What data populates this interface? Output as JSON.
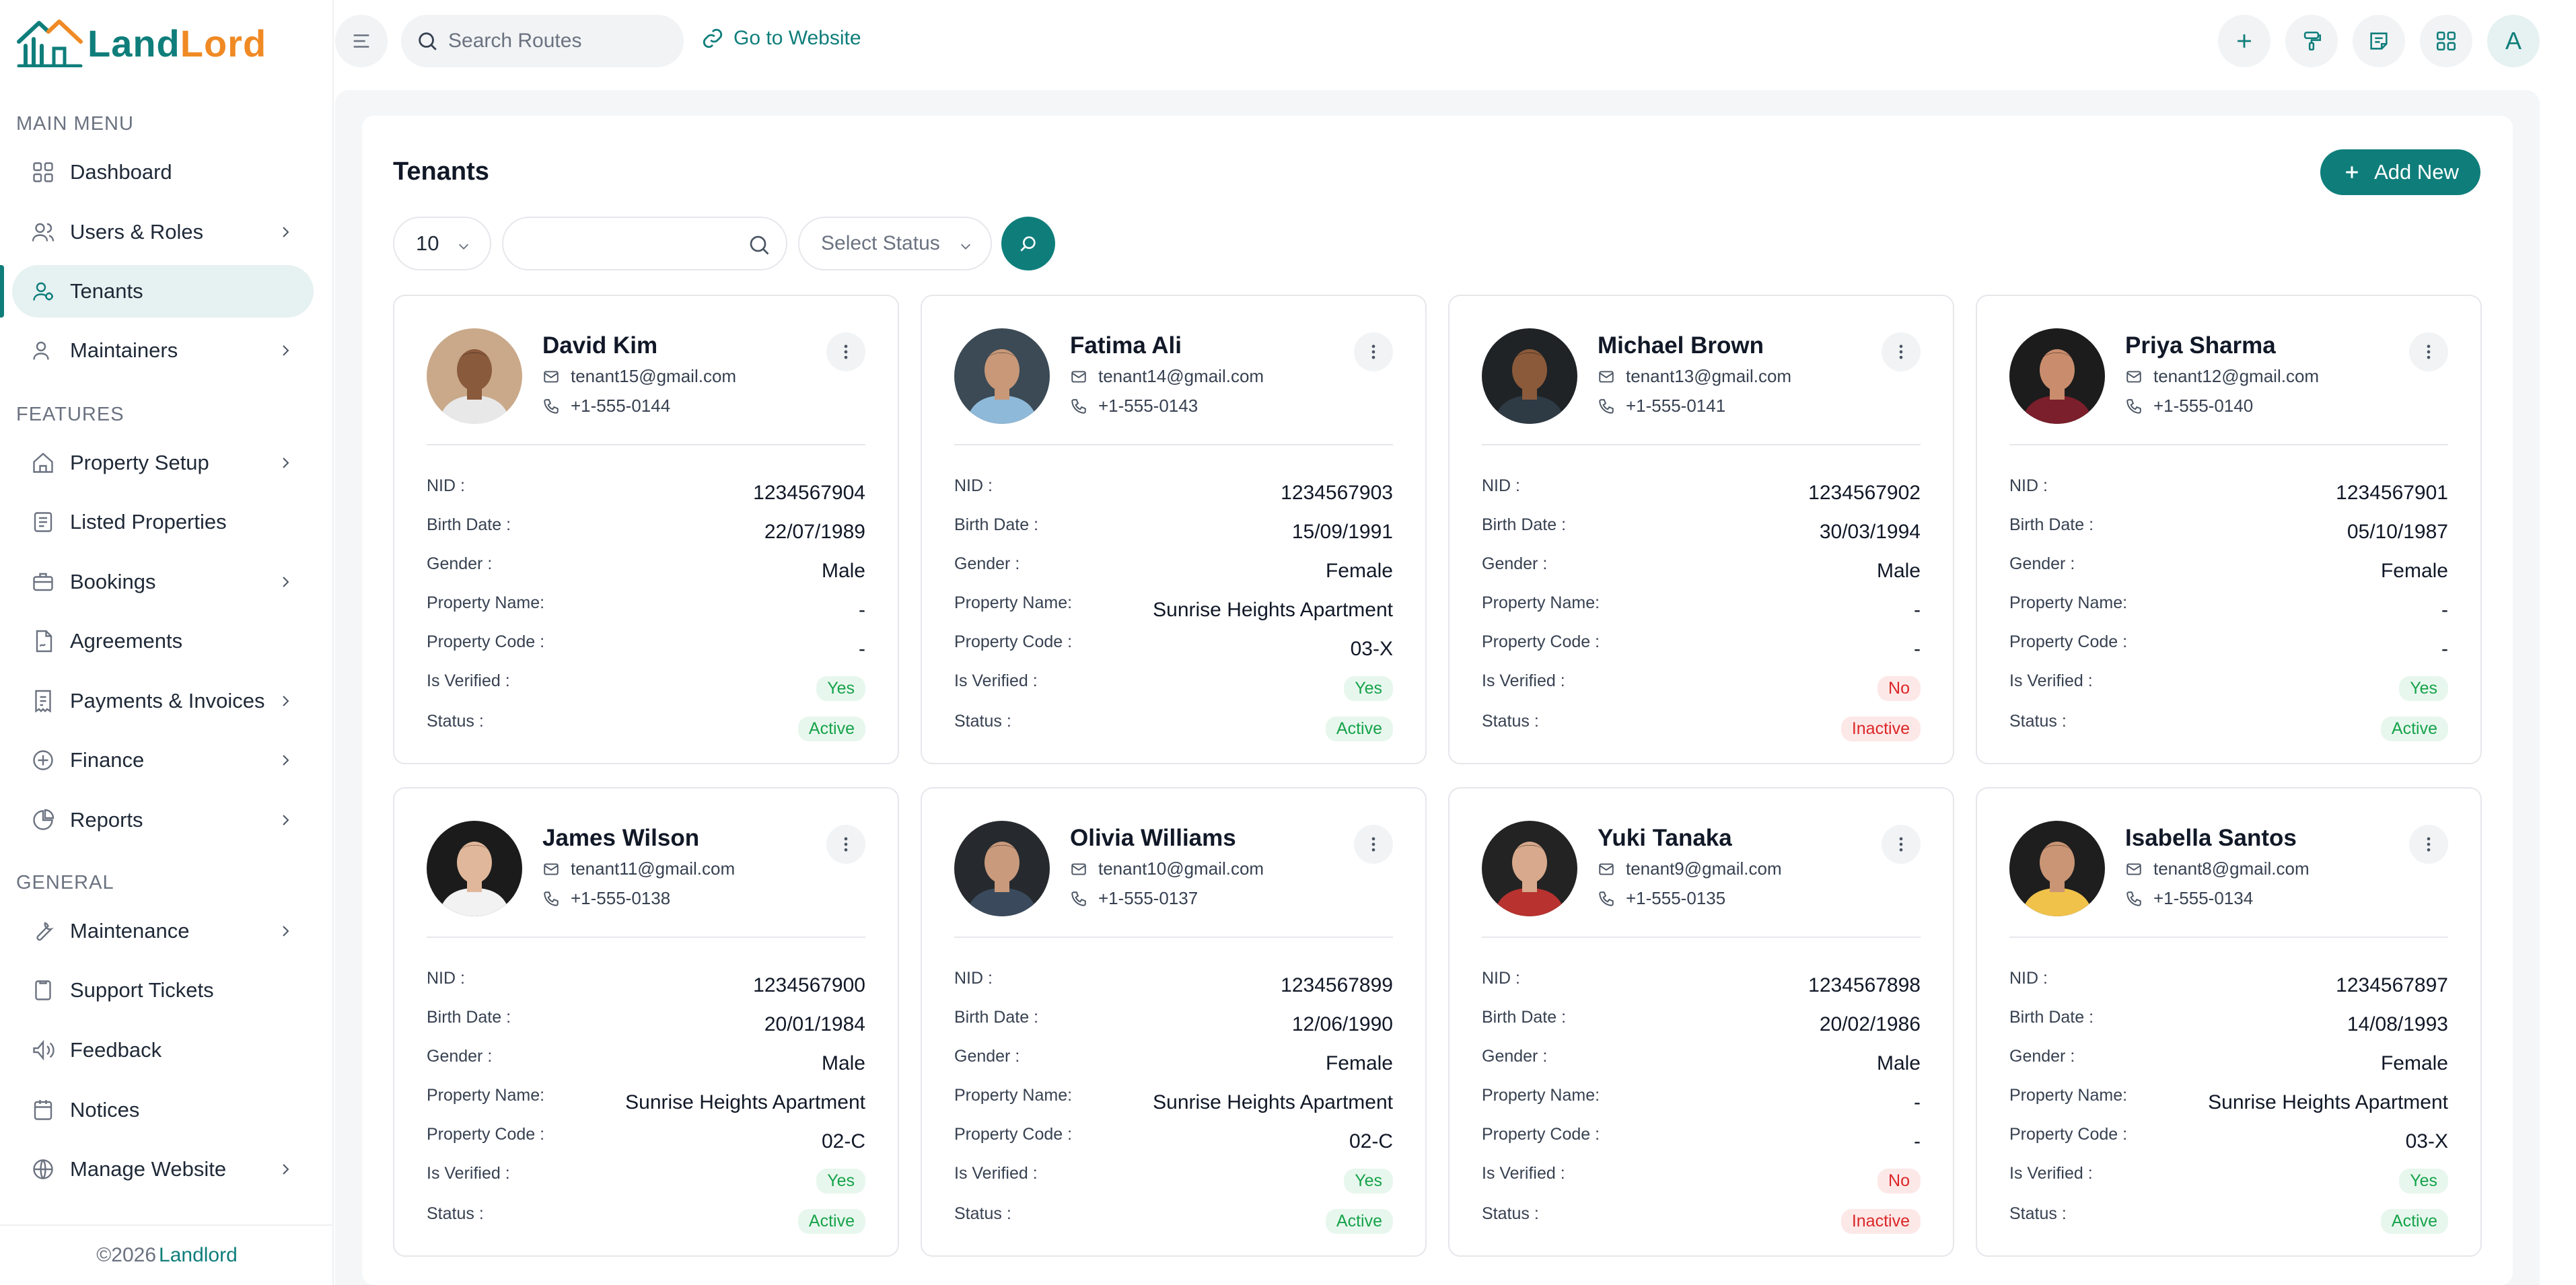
{
  "app": {
    "logo": {
      "part1": "Land",
      "part2": "Lord"
    },
    "footer": {
      "copy": "©2026",
      "brand": "Landlord"
    }
  },
  "colors": {
    "accent": "#0f7e7b",
    "logo_orange": "#f08a24",
    "success": "#16a34a",
    "danger": "#dc2626"
  },
  "sidebar": {
    "sections": [
      {
        "label": "MAIN MENU",
        "items": [
          {
            "label": "Dashboard",
            "icon": "grid-icon",
            "chevron": false
          },
          {
            "label": "Users & Roles",
            "icon": "users-icon",
            "chevron": true
          },
          {
            "label": "Tenants",
            "icon": "tenant-icon",
            "chevron": false,
            "active": true
          },
          {
            "label": "Maintainers",
            "icon": "user-gear-icon",
            "chevron": true
          }
        ]
      },
      {
        "label": "FEATURES",
        "items": [
          {
            "label": "Property Setup",
            "icon": "home-icon",
            "chevron": true
          },
          {
            "label": "Listed Properties",
            "icon": "list-icon",
            "chevron": false
          },
          {
            "label": "Bookings",
            "icon": "briefcase-icon",
            "chevron": true
          },
          {
            "label": "Agreements",
            "icon": "document-icon",
            "chevron": false
          },
          {
            "label": "Payments & Invoices",
            "icon": "invoice-icon",
            "chevron": true
          },
          {
            "label": "Finance",
            "icon": "finance-icon",
            "chevron": true
          },
          {
            "label": "Reports",
            "icon": "report-icon",
            "chevron": true
          }
        ]
      },
      {
        "label": "GENERAL",
        "items": [
          {
            "label": "Maintenance",
            "icon": "wrench-icon",
            "chevron": true
          },
          {
            "label": "Support Tickets",
            "icon": "ticket-icon",
            "chevron": false
          },
          {
            "label": "Feedback",
            "icon": "feedback-icon",
            "chevron": false
          },
          {
            "label": "Notices",
            "icon": "notice-icon",
            "chevron": false
          },
          {
            "label": "Manage Website",
            "icon": "globe-icon",
            "chevron": true
          }
        ]
      }
    ]
  },
  "topbar": {
    "search_placeholder": "Search Routes",
    "goto_website": "Go to Website",
    "avatar_letter": "A",
    "icons": [
      "plus-icon",
      "paint-roller-icon",
      "notes-icon",
      "apps-grid-icon"
    ]
  },
  "page": {
    "title": "Tenants",
    "add_new_label": "Add New",
    "filters": {
      "per_page": "10",
      "search_value": "",
      "status_placeholder": "Select Status"
    }
  },
  "labels": {
    "nid": "NID :",
    "birth": "Birth Date :",
    "gender": "Gender :",
    "property_name": "Property Name:",
    "property_code": "Property Code :",
    "verified": "Is Verified :",
    "status": "Status :"
  },
  "tenants": [
    {
      "name": "David Kim",
      "email": "tenant15@gmail.com",
      "phone": "+1-555-0144",
      "nid": "1234567904",
      "birth": "22/07/1989",
      "gender": "Male",
      "property_name": "-",
      "property_code": "-",
      "verified": "Yes",
      "status": "Active",
      "avatar_bg": "#c9a98a",
      "skin": "#8a5a3c",
      "hair": "#2b1a10",
      "shirt": "#e8e8e8"
    },
    {
      "name": "Fatima Ali",
      "email": "tenant14@gmail.com",
      "phone": "+1-555-0143",
      "nid": "1234567903",
      "birth": "15/09/1991",
      "gender": "Female",
      "property_name": "Sunrise Heights Apartment",
      "property_code": "03-X",
      "verified": "Yes",
      "status": "Active",
      "avatar_bg": "#3b4a55",
      "skin": "#c89878",
      "hair": "#2a2320",
      "shirt": "#8fb9d8"
    },
    {
      "name": "Michael Brown",
      "email": "tenant13@gmail.com",
      "phone": "+1-555-0141",
      "nid": "1234567902",
      "birth": "30/03/1994",
      "gender": "Male",
      "property_name": "-",
      "property_code": "-",
      "verified": "No",
      "status": "Inactive",
      "avatar_bg": "#1f2326",
      "skin": "#8b5a3a",
      "hair": "#1a120c",
      "shirt": "#2e3a44"
    },
    {
      "name": "Priya Sharma",
      "email": "tenant12@gmail.com",
      "phone": "+1-555-0140",
      "nid": "1234567901",
      "birth": "05/10/1987",
      "gender": "Female",
      "property_name": "-",
      "property_code": "-",
      "verified": "Yes",
      "status": "Active",
      "avatar_bg": "#1c1c1c",
      "skin": "#c98d6d",
      "hair": "#2a1610",
      "shirt": "#7a1f2b"
    },
    {
      "name": "James Wilson",
      "email": "tenant11@gmail.com",
      "phone": "+1-555-0138",
      "nid": "1234567900",
      "birth": "20/01/1984",
      "gender": "Male",
      "property_name": "Sunrise Heights Apartment",
      "property_code": "02-C",
      "verified": "Yes",
      "status": "Active",
      "avatar_bg": "#1b1b1b",
      "skin": "#e0b79a",
      "hair": "#4a3426",
      "shirt": "#f2f2f2"
    },
    {
      "name": "Olivia Williams",
      "email": "tenant10@gmail.com",
      "phone": "+1-555-0137",
      "nid": "1234567899",
      "birth": "12/06/1990",
      "gender": "Female",
      "property_name": "Sunrise Heights Apartment",
      "property_code": "02-C",
      "verified": "Yes",
      "status": "Active",
      "avatar_bg": "#262a2e",
      "skin": "#c99a7c",
      "hair": "#2d211a",
      "shirt": "#3a4a5c"
    },
    {
      "name": "Yuki Tanaka",
      "email": "tenant9@gmail.com",
      "phone": "+1-555-0135",
      "nid": "1234567898",
      "birth": "20/02/1986",
      "gender": "Male",
      "property_name": "-",
      "property_code": "-",
      "verified": "No",
      "status": "Inactive",
      "avatar_bg": "#232323",
      "skin": "#d8a98c",
      "hair": "#1c1410",
      "shirt": "#b8322f"
    },
    {
      "name": "Isabella Santos",
      "email": "tenant8@gmail.com",
      "phone": "+1-555-0134",
      "nid": "1234567897",
      "birth": "14/08/1993",
      "gender": "Female",
      "property_name": "Sunrise Heights Apartment",
      "property_code": "03-X",
      "verified": "Yes",
      "status": "Active",
      "avatar_bg": "#1e1e1e",
      "skin": "#c99574",
      "hair": "#2a1c14",
      "shirt": "#f0c24a"
    }
  ]
}
